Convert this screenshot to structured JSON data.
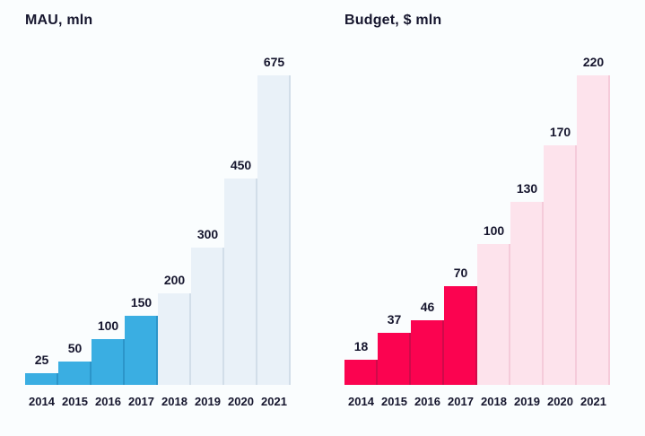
{
  "page": {
    "background_color": "#FAFDFE",
    "text_color": "#16162E"
  },
  "chart_data": [
    {
      "type": "bar",
      "title": "MAU, mln",
      "xlabel": "",
      "ylabel": "",
      "categories": [
        "2014",
        "2015",
        "2016",
        "2017",
        "2018",
        "2019",
        "2020",
        "2021"
      ],
      "values": [
        25,
        50,
        100,
        150,
        200,
        300,
        450,
        675
      ],
      "data_labels": [
        "25",
        "50",
        "100",
        "150",
        "200",
        "300",
        "450",
        "675"
      ],
      "ylim": [
        0,
        675
      ],
      "grid": false,
      "legend": false,
      "axis_lines": false,
      "actual_count": 4,
      "style": {
        "actual_color": "#3AAEE2",
        "actual_seam_color": "#2C95C9",
        "projected_color": "#E9F1F8",
        "projected_seam_color": "#D2DEE9"
      }
    },
    {
      "type": "bar",
      "title": "Budget, $ mln",
      "xlabel": "",
      "ylabel": "",
      "categories": [
        "2014",
        "2015",
        "2016",
        "2017",
        "2018",
        "2019",
        "2020",
        "2021"
      ],
      "values": [
        18,
        37,
        46,
        70,
        100,
        130,
        170,
        220
      ],
      "data_labels": [
        "18",
        "37",
        "46",
        "70",
        "100",
        "130",
        "170",
        "220"
      ],
      "ylim": [
        0,
        220
      ],
      "grid": false,
      "legend": false,
      "axis_lines": false,
      "actual_count": 4,
      "style": {
        "actual_color": "#FB0350",
        "actual_seam_color": "#CF0A4A",
        "projected_color": "#FDE3EC",
        "projected_seam_color": "#F5CBDA"
      }
    }
  ]
}
